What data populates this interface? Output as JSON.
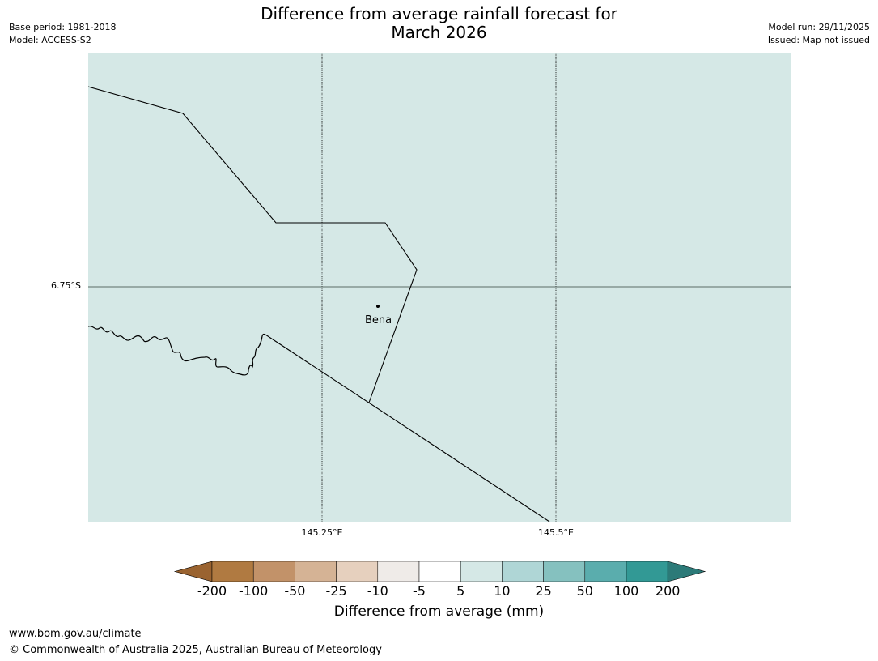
{
  "title": {
    "line1": "Difference from average rainfall forecast for",
    "line2": "March 2026"
  },
  "header_left": {
    "base_period": "Base period: 1981-2018",
    "model": "Model: ACCESS-S2"
  },
  "header_right": {
    "model_run": "Model run: 29/11/2025",
    "issued": "Issued: Map not issued"
  },
  "map": {
    "fill_color": "#d5e8e6",
    "latitude_label": "6.75°S",
    "longitude_labels": [
      "145.25°E",
      "145.5°E"
    ],
    "place_name": "Bena"
  },
  "legend": {
    "ticks": [
      "-200",
      "-100",
      "-50",
      "-25",
      "-10",
      "-5",
      "5",
      "10",
      "25",
      "50",
      "100",
      "200"
    ],
    "colors": [
      "#9a6330",
      "#b07a41",
      "#c29269",
      "#d5b395",
      "#e6d0be",
      "#efebe8",
      "#ffffff",
      "#d5e8e6",
      "#afd6d6",
      "#85c1bf",
      "#5aadad",
      "#329995",
      "#2c7a78"
    ],
    "label": "Difference from average (mm)"
  },
  "footer": {
    "url": "www.bom.gov.au/climate",
    "copyright": "© Commonwealth of Australia 2025, Australian Bureau of Meteorology"
  }
}
